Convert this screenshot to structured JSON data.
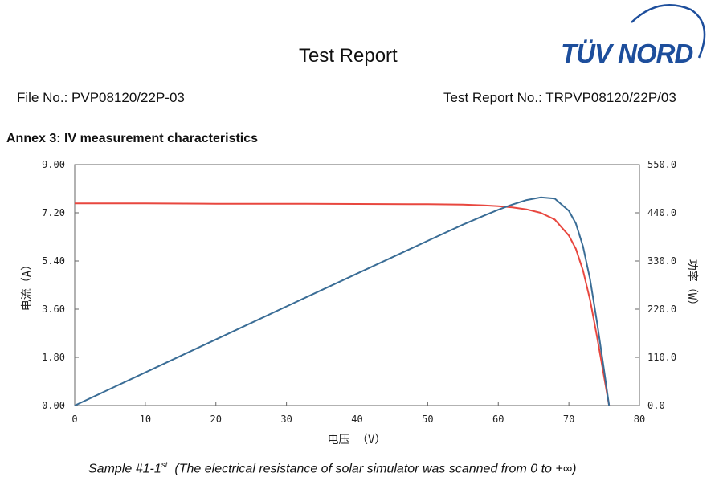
{
  "header": {
    "title": "Test Report",
    "logo_text": "TÜV NORD",
    "file_no": "File No.: PVP08120/22P-03",
    "report_no": "Test Report No.: TRPVP08120/22P/03"
  },
  "annex_heading": "Annex 3: IV measurement characteristics",
  "caption": {
    "prefix": "Sample #1-1",
    "superscript": "st",
    "suffix": "  (The electrical resistance of solar simulator was scanned from 0 to +∞)"
  },
  "colors": {
    "iv_curve": "#e8473f",
    "power_curve": "#3a6d96",
    "logo": "#1d4e9c"
  },
  "chart_data": {
    "type": "line",
    "xlabel": "电压 （V）",
    "ylabel_left": "电流（A）",
    "ylabel_right": "功率（W）",
    "xlim": [
      0,
      80
    ],
    "ylim_left": [
      0,
      9
    ],
    "ylim_right": [
      0,
      550
    ],
    "x_ticks": [
      "0",
      "10",
      "20",
      "30",
      "40",
      "50",
      "60",
      "70",
      "80"
    ],
    "y_left_ticks": [
      "0.00",
      "1.80",
      "3.60",
      "5.40",
      "7.20",
      "9.00"
    ],
    "y_right_ticks": [
      "0.0",
      "110.0",
      "220.0",
      "330.0",
      "440.0",
      "550.0"
    ],
    "grid": false,
    "series": [
      {
        "axis": "left",
        "color": "#e8473f",
        "x": [
          0,
          10,
          20,
          30,
          40,
          50,
          55,
          58,
          60,
          62,
          64,
          66,
          68,
          70,
          71,
          72,
          73,
          74,
          75,
          75.7
        ],
        "y": [
          7.55,
          7.55,
          7.54,
          7.54,
          7.53,
          7.52,
          7.51,
          7.48,
          7.45,
          7.4,
          7.33,
          7.2,
          6.95,
          6.35,
          5.85,
          5.05,
          3.95,
          2.55,
          1.05,
          0.0
        ]
      },
      {
        "axis": "right",
        "color": "#3a6d96",
        "x": [
          0,
          10,
          20,
          30,
          40,
          50,
          55,
          58,
          60,
          62,
          64,
          66,
          68,
          70,
          71,
          72,
          73,
          74,
          75,
          75.7
        ],
        "y": [
          0,
          75.5,
          150.8,
          226.2,
          301.2,
          376.0,
          413.1,
          433.8,
          447.0,
          458.8,
          469.1,
          475.2,
          472.6,
          444.5,
          415.4,
          363.6,
          288.4,
          188.7,
          78.8,
          0.0
        ]
      }
    ]
  }
}
